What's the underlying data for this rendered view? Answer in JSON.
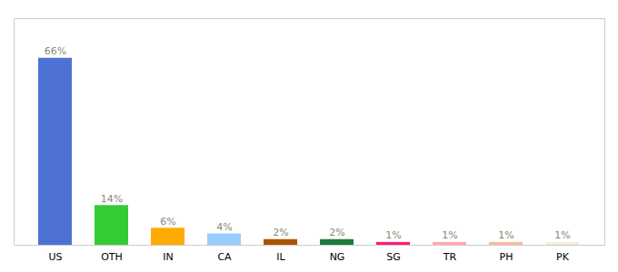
{
  "chart_data": {
    "type": "bar",
    "categories": [
      "US",
      "OTH",
      "IN",
      "CA",
      "IL",
      "NG",
      "SG",
      "TR",
      "PH",
      "PK"
    ],
    "values": [
      66,
      14,
      6,
      4,
      2,
      2,
      1,
      1,
      1,
      1
    ],
    "value_labels": [
      "66%",
      "14%",
      "6%",
      "4%",
      "2%",
      "2%",
      "1%",
      "1%",
      "1%",
      "1%"
    ],
    "colors": [
      "#4d72d4",
      "#33cc33",
      "#ffaa00",
      "#99ccff",
      "#aa5500",
      "#1a7d3c",
      "#ff1a75",
      "#ffaaaa",
      "#ffb899",
      "#f5f0d0"
    ],
    "data_labels": true,
    "ylim": [
      0,
      80
    ],
    "tick_labels": "x"
  }
}
